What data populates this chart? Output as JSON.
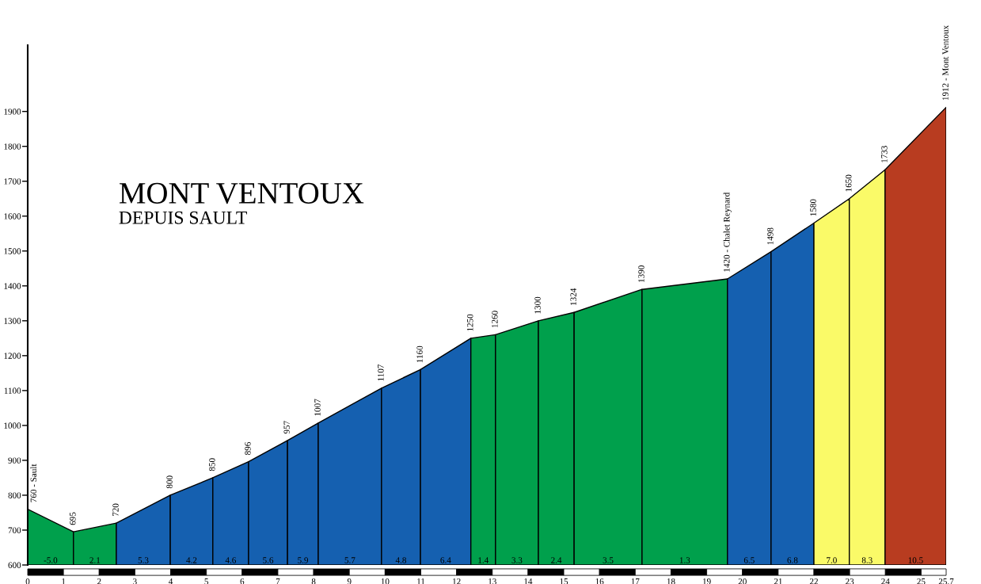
{
  "chart_data": {
    "type": "area",
    "title": "MONT VENTOUX",
    "subtitle": "DEPUIS SAULT",
    "series": [
      {
        "color": "#00a04c",
        "x": [
          0,
          1.28
        ],
        "values": [
          760,
          695
        ],
        "value_labels": [
          "760 - Sault",
          null
        ]
      },
      {
        "color": "#00a04c",
        "x": [
          1.28,
          2.48
        ],
        "values": [
          695,
          720
        ],
        "value_labels": [
          "695",
          null
        ]
      },
      {
        "color": "#1560b0",
        "x": [
          2.48,
          3.99
        ],
        "values": [
          720,
          800
        ],
        "value_labels": [
          "720",
          null
        ]
      },
      {
        "color": "#1560b0",
        "x": [
          3.99,
          5.18
        ],
        "values": [
          800,
          850
        ],
        "value_labels": [
          "800",
          null
        ]
      },
      {
        "color": "#1560b0",
        "x": [
          5.18,
          6.18
        ],
        "values": [
          850,
          896
        ],
        "value_labels": [
          "850",
          null
        ]
      },
      {
        "color": "#1560b0",
        "x": [
          6.18,
          7.27
        ],
        "values": [
          896,
          957
        ],
        "value_labels": [
          "896",
          null
        ]
      },
      {
        "color": "#1560b0",
        "x": [
          7.27,
          8.13
        ],
        "values": [
          957,
          1007
        ],
        "value_labels": [
          "957",
          null
        ]
      },
      {
        "color": "#1560b0",
        "x": [
          8.13,
          9.9
        ],
        "values": [
          1007,
          1107
        ],
        "value_labels": [
          "1007",
          null
        ]
      },
      {
        "color": "#1560b0",
        "x": [
          9.9,
          10.99
        ],
        "values": [
          1107,
          1160
        ],
        "value_labels": [
          "1107",
          null
        ]
      },
      {
        "color": "#1560b0",
        "x": [
          10.99,
          12.4
        ],
        "values": [
          1160,
          1250
        ],
        "value_labels": [
          "1160",
          null
        ]
      },
      {
        "color": "#00a04c",
        "x": [
          12.4,
          13.09
        ],
        "values": [
          1250,
          1260
        ],
        "value_labels": [
          "1250",
          null
        ]
      },
      {
        "color": "#00a04c",
        "x": [
          13.09,
          14.29
        ],
        "values": [
          1260,
          1300
        ],
        "value_labels": [
          "1260",
          null
        ]
      },
      {
        "color": "#00a04c",
        "x": [
          14.29,
          15.29
        ],
        "values": [
          1300,
          1324
        ],
        "value_labels": [
          "1300",
          null
        ]
      },
      {
        "color": "#00a04c",
        "x": [
          15.29,
          17.19
        ],
        "values": [
          1324,
          1390
        ],
        "value_labels": [
          "1324",
          null
        ]
      },
      {
        "color": "#00a04c",
        "x": [
          17.19,
          19.58
        ],
        "values": [
          1390,
          1420
        ],
        "value_labels": [
          "1390",
          null
        ]
      },
      {
        "color": "#1560b0",
        "x": [
          19.58,
          20.8
        ],
        "values": [
          1420,
          1498
        ],
        "value_labels": [
          "1420 - Chalet Reynard",
          null
        ]
      },
      {
        "color": "#1560b0",
        "x": [
          20.8,
          22.0
        ],
        "values": [
          1498,
          1580
        ],
        "value_labels": [
          "1498",
          null
        ]
      },
      {
        "color": "#fafa68",
        "x": [
          22.0,
          22.99
        ],
        "values": [
          1580,
          1650
        ],
        "value_labels": [
          "1580",
          null
        ]
      },
      {
        "color": "#fafa68",
        "x": [
          22.99,
          23.99
        ],
        "values": [
          1650,
          1733
        ],
        "value_labels": [
          "1650",
          null
        ]
      },
      {
        "color": "#b83c20",
        "x": [
          23.99,
          25.7
        ],
        "values": [
          1733,
          1912
        ],
        "value_labels": [
          "1733",
          "1912 - Mont Ventoux"
        ]
      }
    ],
    "annotations": [
      "-5.0",
      "2.1",
      "5.3",
      "4.2",
      "4.6",
      "5.6",
      "5.9",
      "5.7",
      "4.8",
      "6.4",
      "1.4",
      "3.3",
      "2.4",
      "3.5",
      "1.3",
      "6.5",
      "6.8",
      "7.0",
      "8.3",
      "10.5"
    ],
    "xlim": [
      0,
      25.7
    ],
    "ylim": [
      600,
      2090
    ],
    "xticks": [
      0,
      1,
      2,
      3,
      4,
      5,
      6,
      7,
      8,
      9,
      10,
      11,
      12,
      13,
      14,
      15,
      16,
      17,
      18,
      19,
      20,
      21,
      22,
      23,
      24,
      25,
      25.7
    ],
    "yticks": [
      600,
      700,
      800,
      900,
      1000,
      1100,
      1200,
      1300,
      1400,
      1500,
      1600,
      1700,
      1800,
      1900
    ],
    "grid": false,
    "legend": false
  }
}
